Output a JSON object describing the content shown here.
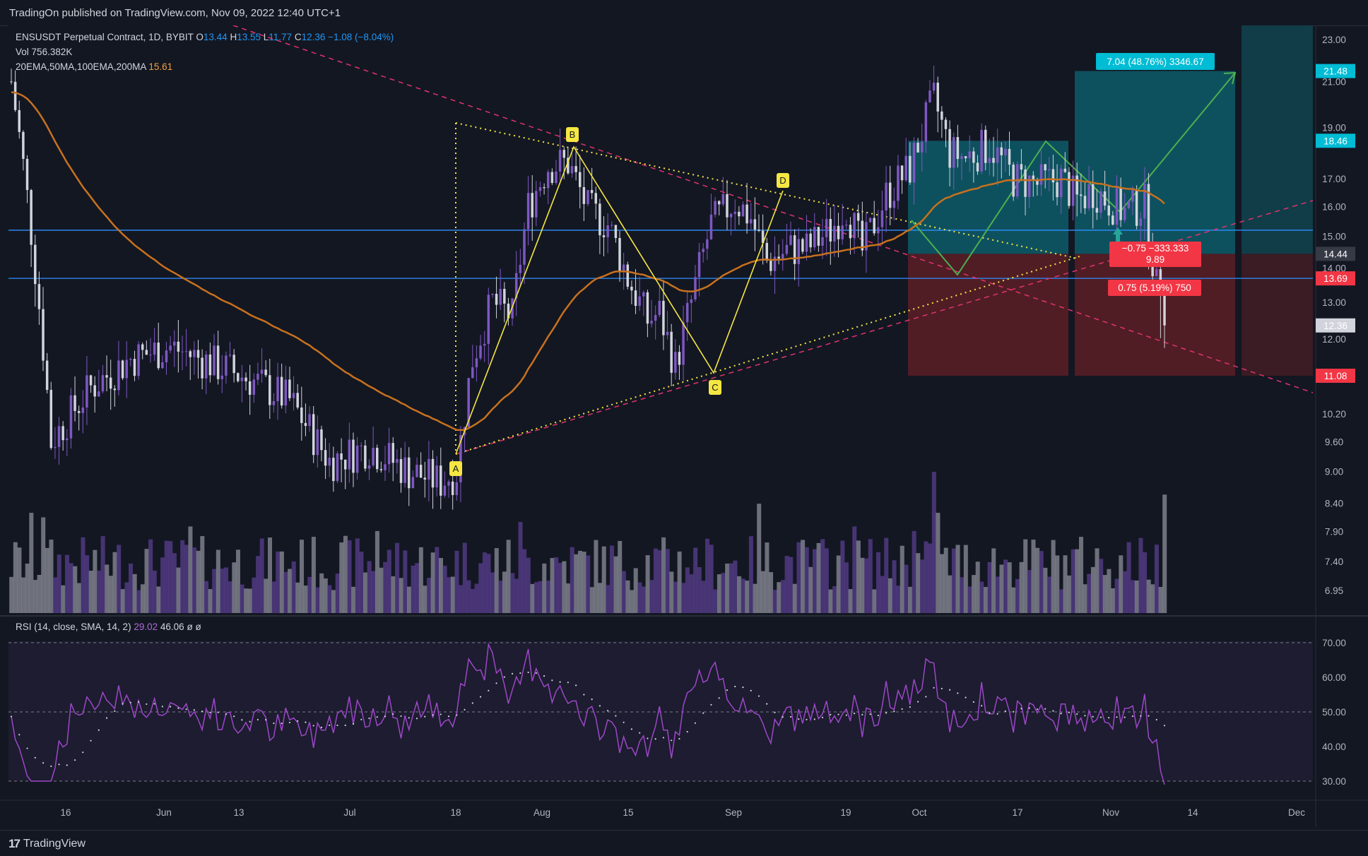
{
  "header": {
    "published_text": "TradingOn published on TradingView.com, Nov 09, 2022 12:40 UTC+1"
  },
  "footer": {
    "logo_text": "TradingView"
  },
  "legend": {
    "symbol": "ENSUSDT Perpetual Contract, 1D, BYBIT",
    "o_label": "O",
    "o_value": "13.44",
    "h_label": "H",
    "h_value": "13.55",
    "l_label": "L",
    "l_value": "11.77",
    "c_label": "C",
    "c_value": "12.36",
    "change": "−1.08 (−8.04%)",
    "vol_label": "Vol",
    "vol_value": "756.382K",
    "ema_label": "20EMA,50MA,100EMA,200MA",
    "ema_value": "15.61",
    "rsi_label": "RSI (14, close, SMA, 14, 2)",
    "rsi_value": "29.02",
    "rsi_sma_value": "46.06",
    "rsi_extra1": "ø",
    "rsi_extra2": "ø"
  },
  "colors": {
    "background": "#131722",
    "up_candle": "#7e57c2",
    "down_candle": "#d1d4dc",
    "ema_line": "#c8711e",
    "pattern_line": "#f5e642",
    "trend_dashed": "#e0336d",
    "horizontal_line": "#2e8fff",
    "target_box": "#0e5c68",
    "stop_box": "#5c1f26",
    "rsi_line": "#9c47c8",
    "projection": "#4caf50"
  },
  "chart_data": {
    "type": "candlestick",
    "symbol": "ENSUSDT",
    "timeframe": "1D",
    "price_axis": {
      "ticks": [
        "23.00",
        "21.00",
        "19.00",
        "17.00",
        "16.00",
        "15.00",
        "14.00",
        "13.00",
        "12.00",
        "10.20",
        "9.60",
        "9.00",
        "8.40",
        "7.90",
        "7.40",
        "6.95"
      ],
      "scale": "log",
      "ylim": [
        6.8,
        24.0
      ]
    },
    "time_axis": {
      "ticks": [
        "16",
        "Jun",
        "13",
        "Jul",
        "18",
        "Aug",
        "15",
        "Sep",
        "19",
        "Oct",
        "17",
        "Nov",
        "14",
        "Dec"
      ]
    },
    "price_tags": [
      {
        "value": "21.48",
        "color": "#00bcd4"
      },
      {
        "value": "18.46",
        "color": "#00bcd4"
      },
      {
        "value": "14.44",
        "color": "#363a45"
      },
      {
        "value": "13.69",
        "color": "#f23645"
      },
      {
        "value": "12.36",
        "color": "#d1d4dc"
      },
      {
        "value": "11.08",
        "color": "#f23645"
      }
    ],
    "horizontal_levels": [
      15.2,
      13.69
    ],
    "harmonic_pattern": {
      "labels": [
        "A",
        "B",
        "C",
        "D"
      ],
      "points": [
        {
          "x": "Jul 18",
          "y": 9.4
        },
        {
          "x": "Aug 5",
          "y": 18.0
        },
        {
          "x": "Sep 1",
          "y": 11.2
        },
        {
          "x": "Sep 12",
          "y": 16.4
        }
      ]
    },
    "position_boxes": [
      {
        "entry": 14.44,
        "target": 18.46,
        "stop": 11.08
      },
      {
        "entry": 14.44,
        "target": 21.48,
        "stop": 11.08
      }
    ],
    "annotations": [
      {
        "text": "7.04 (48.76%) 3346.67",
        "kind": "target",
        "color": "#00bcd4"
      },
      {
        "text": "−0.75 −333.333",
        "kind": "stop",
        "color": "#f23645"
      },
      {
        "text": "9.89",
        "kind": "stop",
        "color": "#f23645"
      },
      {
        "text": "0.75 (5.19%) 750",
        "kind": "stop",
        "color": "#f23645"
      }
    ],
    "rsi": {
      "axis_ticks": [
        "70.00",
        "60.00",
        "50.00",
        "40.00",
        "30.00"
      ],
      "ylim": [
        25,
        75
      ],
      "last": 29.02,
      "sma_last": 46.06
    }
  }
}
